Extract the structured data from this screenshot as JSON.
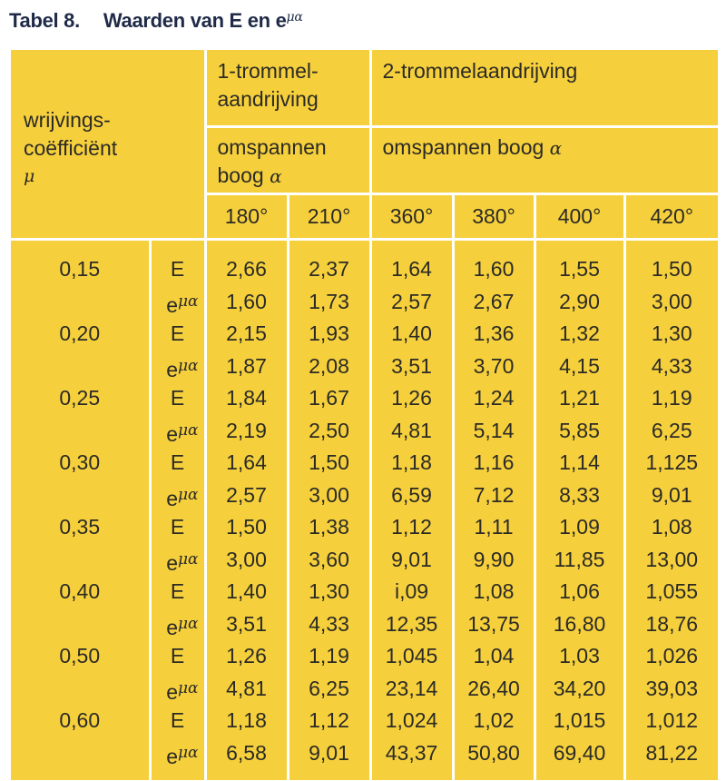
{
  "title": {
    "label": "Tabel 8.",
    "text": "Waarden van E en e",
    "sup": "μα"
  },
  "header": {
    "corner_line1": "wrijvings-",
    "corner_line2": "coëfficiënt",
    "corner_symbol": "μ",
    "group1_line1": "1-trommel-",
    "group1_line2": "aandrijving",
    "group2": "2-trommelaandrijving",
    "sub1_line1": "omspannen",
    "sub1_line2": "boog",
    "sub2": "omspannen boog",
    "alpha": "α",
    "angles": [
      "180°",
      "210°",
      "360°",
      "380°",
      "400°",
      "420°"
    ]
  },
  "symbols": {
    "E": "E",
    "e": "e",
    "mualpha": "μα"
  },
  "rows": [
    {
      "mu": "0,15",
      "E": [
        "2,66",
        "2,37",
        "1,64",
        "1,60",
        "1,55",
        "1,50"
      ],
      "emua": [
        "1,60",
        "1,73",
        "2,57",
        "2,67",
        "2,90",
        "3,00"
      ]
    },
    {
      "mu": "0,20",
      "E": [
        "2,15",
        "1,93",
        "1,40",
        "1,36",
        "1,32",
        "1,30"
      ],
      "emua": [
        "1,87",
        "2,08",
        "3,51",
        "3,70",
        "4,15",
        "4,33"
      ]
    },
    {
      "mu": "0,25",
      "E": [
        "1,84",
        "1,67",
        "1,26",
        "1,24",
        "1,21",
        "1,19"
      ],
      "emua": [
        "2,19",
        "2,50",
        "4,81",
        "5,14",
        "5,85",
        "6,25"
      ]
    },
    {
      "mu": "0,30",
      "E": [
        "1,64",
        "1,50",
        "1,18",
        "1,16",
        "1,14",
        "1,125"
      ],
      "emua": [
        "2,57",
        "3,00",
        "6,59",
        "7,12",
        "8,33",
        "9,01"
      ]
    },
    {
      "mu": "0,35",
      "E": [
        "1,50",
        "1,38",
        "1,12",
        "1,11",
        "1,09",
        "1,08"
      ],
      "emua": [
        "3,00",
        "3,60",
        "9,01",
        "9,90",
        "11,85",
        "13,00"
      ]
    },
    {
      "mu": "0,40",
      "E": [
        "1,40",
        "1,30",
        "i,09",
        "1,08",
        "1,06",
        "1,055"
      ],
      "emua": [
        "3,51",
        "4,33",
        "12,35",
        "13,75",
        "16,80",
        "18,76"
      ]
    },
    {
      "mu": "0,50",
      "E": [
        "1,26",
        "1,19",
        "1,045",
        "1,04",
        "1,03",
        "1,026"
      ],
      "emua": [
        "4,81",
        "6,25",
        "23,14",
        "26,40",
        "34,20",
        "39,03"
      ]
    },
    {
      "mu": "0,60",
      "E": [
        "1,18",
        "1,12",
        "1,024",
        "1,02",
        "1,015",
        "1,012"
      ],
      "emua": [
        "6,58",
        "9,01",
        "43,37",
        "50,80",
        "69,40",
        "81,22"
      ]
    }
  ]
}
